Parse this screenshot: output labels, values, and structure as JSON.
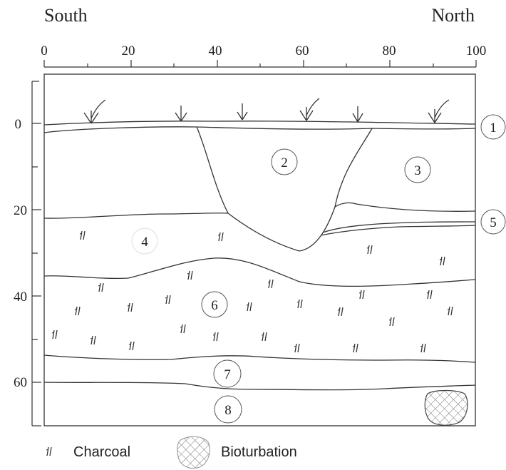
{
  "header": {
    "left": "South",
    "right": "North"
  },
  "x_axis_ticks": [
    "0",
    "20",
    "40",
    "60",
    "80",
    "100"
  ],
  "y_axis_ticks": [
    "0",
    "20",
    "40",
    "60"
  ],
  "layers": [
    {
      "id": "1",
      "label": "1"
    },
    {
      "id": "2",
      "label": "2"
    },
    {
      "id": "3",
      "label": "3"
    },
    {
      "id": "4",
      "label": "4"
    },
    {
      "id": "5",
      "label": "5"
    },
    {
      "id": "6",
      "label": "6"
    },
    {
      "id": "7",
      "label": "7"
    },
    {
      "id": "8",
      "label": "8"
    }
  ],
  "legend": {
    "charcoal": "Charcoal",
    "bioturbation": "Bioturbation"
  },
  "colors": {
    "line": "#333333",
    "hatch": "#777777"
  }
}
